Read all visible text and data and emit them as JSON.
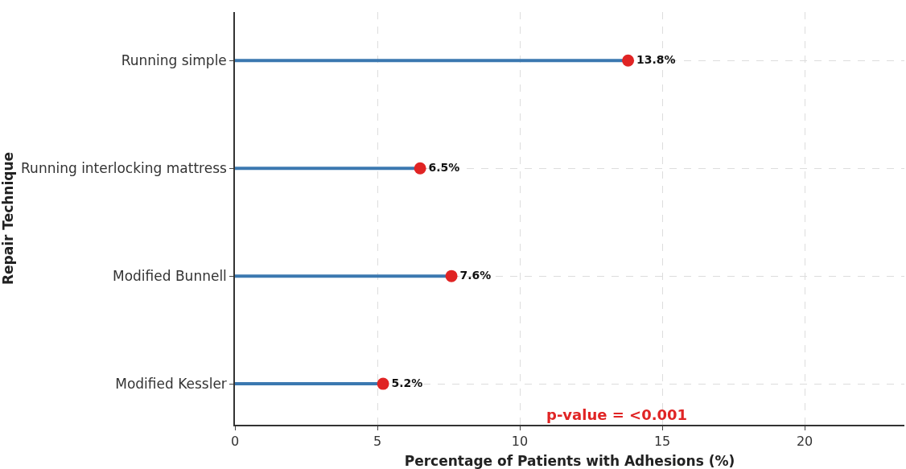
{
  "chart_data": {
    "type": "lollipop",
    "orientation": "horizontal",
    "xlabel": "Percentage of Patients with Adhesions (%)",
    "ylabel": "Repair Technique",
    "categories": [
      "Running simple",
      "Running interlocking mattress",
      "Modified Bunnell",
      "Modified Kessler"
    ],
    "series": [
      {
        "color": "#e02424",
        "values": [
          13.8,
          6.5,
          7.6,
          5.2
        ]
      }
    ],
    "colors": [
      "#3b78b0",
      "#3b78b0",
      "#3b78b0",
      "#3b78b0"
    ],
    "value_labels": [
      "13.8%",
      "6.5%",
      "7.6%",
      "5.2%"
    ],
    "xlim": [
      0,
      23.5
    ],
    "xticks": [
      0,
      5,
      10,
      15,
      20
    ],
    "grid": true,
    "marker": "circle",
    "annotations": [
      "p-value = <0.001"
    ]
  }
}
